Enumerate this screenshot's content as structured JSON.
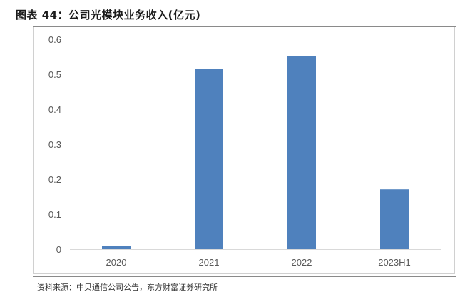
{
  "figure": {
    "title": "图表 44：公司光模块业务收入(亿元)",
    "source": "资料来源：中贝通信公司公告，东方财富证券研究所"
  },
  "chart_data": {
    "type": "bar",
    "categories": [
      "2020",
      "2021",
      "2022",
      "2023H1"
    ],
    "values": [
      0.01,
      0.515,
      0.553,
      0.171
    ],
    "title": "",
    "xlabel": "",
    "ylabel": "",
    "ylim": [
      0,
      0.6
    ],
    "yticks": [
      "0",
      "0.1",
      "0.2",
      "0.3",
      "0.4",
      "0.5",
      "0.6"
    ],
    "grid": false,
    "legend": "none",
    "bar_color": "#4F81BD",
    "axis_color": "#D9D9D9"
  }
}
